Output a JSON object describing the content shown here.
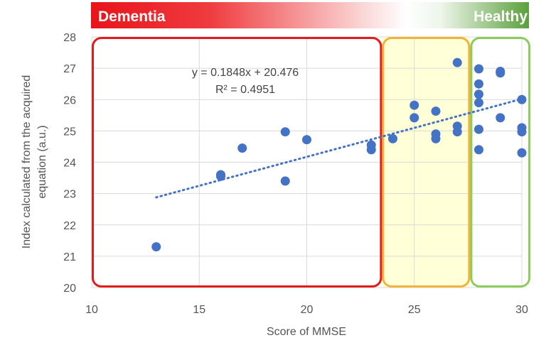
{
  "chart_data": {
    "type": "scatter",
    "title": "",
    "xlabel": "Score of MMSE",
    "ylabel_line1": "Index calculated from the acquired",
    "ylabel_line2": "equation (a.u.)",
    "xlim": [
      10,
      30
    ],
    "ylim": [
      20,
      28
    ],
    "xticks": [
      10,
      15,
      20,
      25,
      30
    ],
    "yticks": [
      20,
      21,
      22,
      23,
      24,
      25,
      26,
      27,
      28
    ],
    "grid": true,
    "banner": {
      "left_label": "Dementia",
      "right_label": "Healthy",
      "left_color": "#e8141a",
      "right_color": "#5aa03c"
    },
    "regions": [
      {
        "name": "dementia-region",
        "x_range": [
          10.0,
          23.5
        ],
        "y_range": [
          20.0,
          28.0
        ],
        "border": "#e31b1b",
        "fill": "none"
      },
      {
        "name": "mid-region",
        "x_range": [
          23.5,
          27.6
        ],
        "y_range": [
          20.0,
          28.0
        ],
        "border": "#f0b43c",
        "fill": "#ffffd8"
      },
      {
        "name": "healthy-region",
        "x_range": [
          27.6,
          30.4
        ],
        "y_range": [
          20.0,
          28.0
        ],
        "border": "#8ccc5a",
        "fill": "none"
      }
    ],
    "series": [
      {
        "color": "#4472c4",
        "points": [
          [
            13,
            21.3
          ],
          [
            16,
            23.6
          ],
          [
            16,
            23.55
          ],
          [
            17,
            24.45
          ],
          [
            19,
            24.97
          ],
          [
            19,
            23.4
          ],
          [
            20,
            24.72
          ],
          [
            23,
            24.55
          ],
          [
            23,
            24.4
          ],
          [
            24,
            24.75
          ],
          [
            25,
            25.82
          ],
          [
            25,
            25.42
          ],
          [
            26,
            25.63
          ],
          [
            26,
            24.9
          ],
          [
            26,
            24.75
          ],
          [
            27,
            27.18
          ],
          [
            27,
            25.15
          ],
          [
            27,
            24.97
          ],
          [
            28,
            26.98
          ],
          [
            28,
            26.5
          ],
          [
            28,
            26.17
          ],
          [
            28,
            25.9
          ],
          [
            28,
            25.05
          ],
          [
            28,
            24.4
          ],
          [
            29,
            26.9
          ],
          [
            29,
            26.85
          ],
          [
            29,
            25.42
          ],
          [
            30,
            26.0
          ],
          [
            30,
            25.1
          ],
          [
            30,
            24.97
          ],
          [
            30,
            24.3
          ]
        ]
      }
    ],
    "trendline": {
      "slope": 0.1848,
      "intercept": 20.476,
      "x_range": [
        13,
        30
      ],
      "color": "#4472c4",
      "style": "dotted"
    },
    "annotations": {
      "equation": "y = 0.1848x + 20.476",
      "r_squared": "R² = 0.4951"
    }
  }
}
